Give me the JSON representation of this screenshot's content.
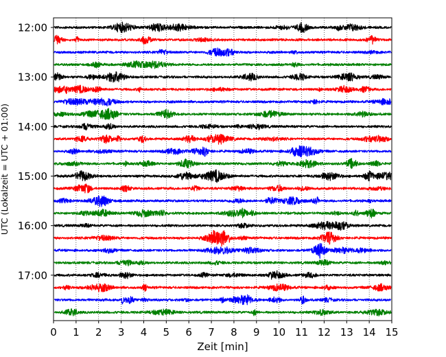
{
  "chart_data": {
    "type": "line",
    "title": "",
    "xlabel": "Zeit  [min]",
    "ylabel": "UTC (Lokalzeit = UTC + 01:00)",
    "xlim": [
      0,
      15
    ],
    "x_ticks": [
      0,
      1,
      2,
      3,
      4,
      5,
      6,
      7,
      8,
      9,
      10,
      11,
      12,
      13,
      14,
      15
    ],
    "x_tick_labels": [
      "0",
      "1",
      "2",
      "3",
      "4",
      "5",
      "6",
      "7",
      "8",
      "9",
      "10",
      "11",
      "12",
      "13",
      "14",
      "15"
    ],
    "y_tick_labels": [
      "12:00",
      "13:00",
      "14:00",
      "15:00",
      "16:00",
      "17:00"
    ],
    "grid": "vertical dotted",
    "trace_start_times": [
      "12:00",
      "12:15",
      "12:30",
      "12:45",
      "13:00",
      "13:15",
      "13:30",
      "13:45",
      "14:00",
      "14:15",
      "14:30",
      "14:45",
      "15:00",
      "15:15",
      "15:30",
      "15:45",
      "16:00",
      "16:15",
      "16:30",
      "16:45",
      "17:00",
      "17:15",
      "17:30",
      "17:45"
    ],
    "trace_colors": [
      "#000000",
      "#ff0000",
      "#0000ff",
      "#008000"
    ],
    "trace_minutes": 15,
    "trace_duration_min": 15
  }
}
